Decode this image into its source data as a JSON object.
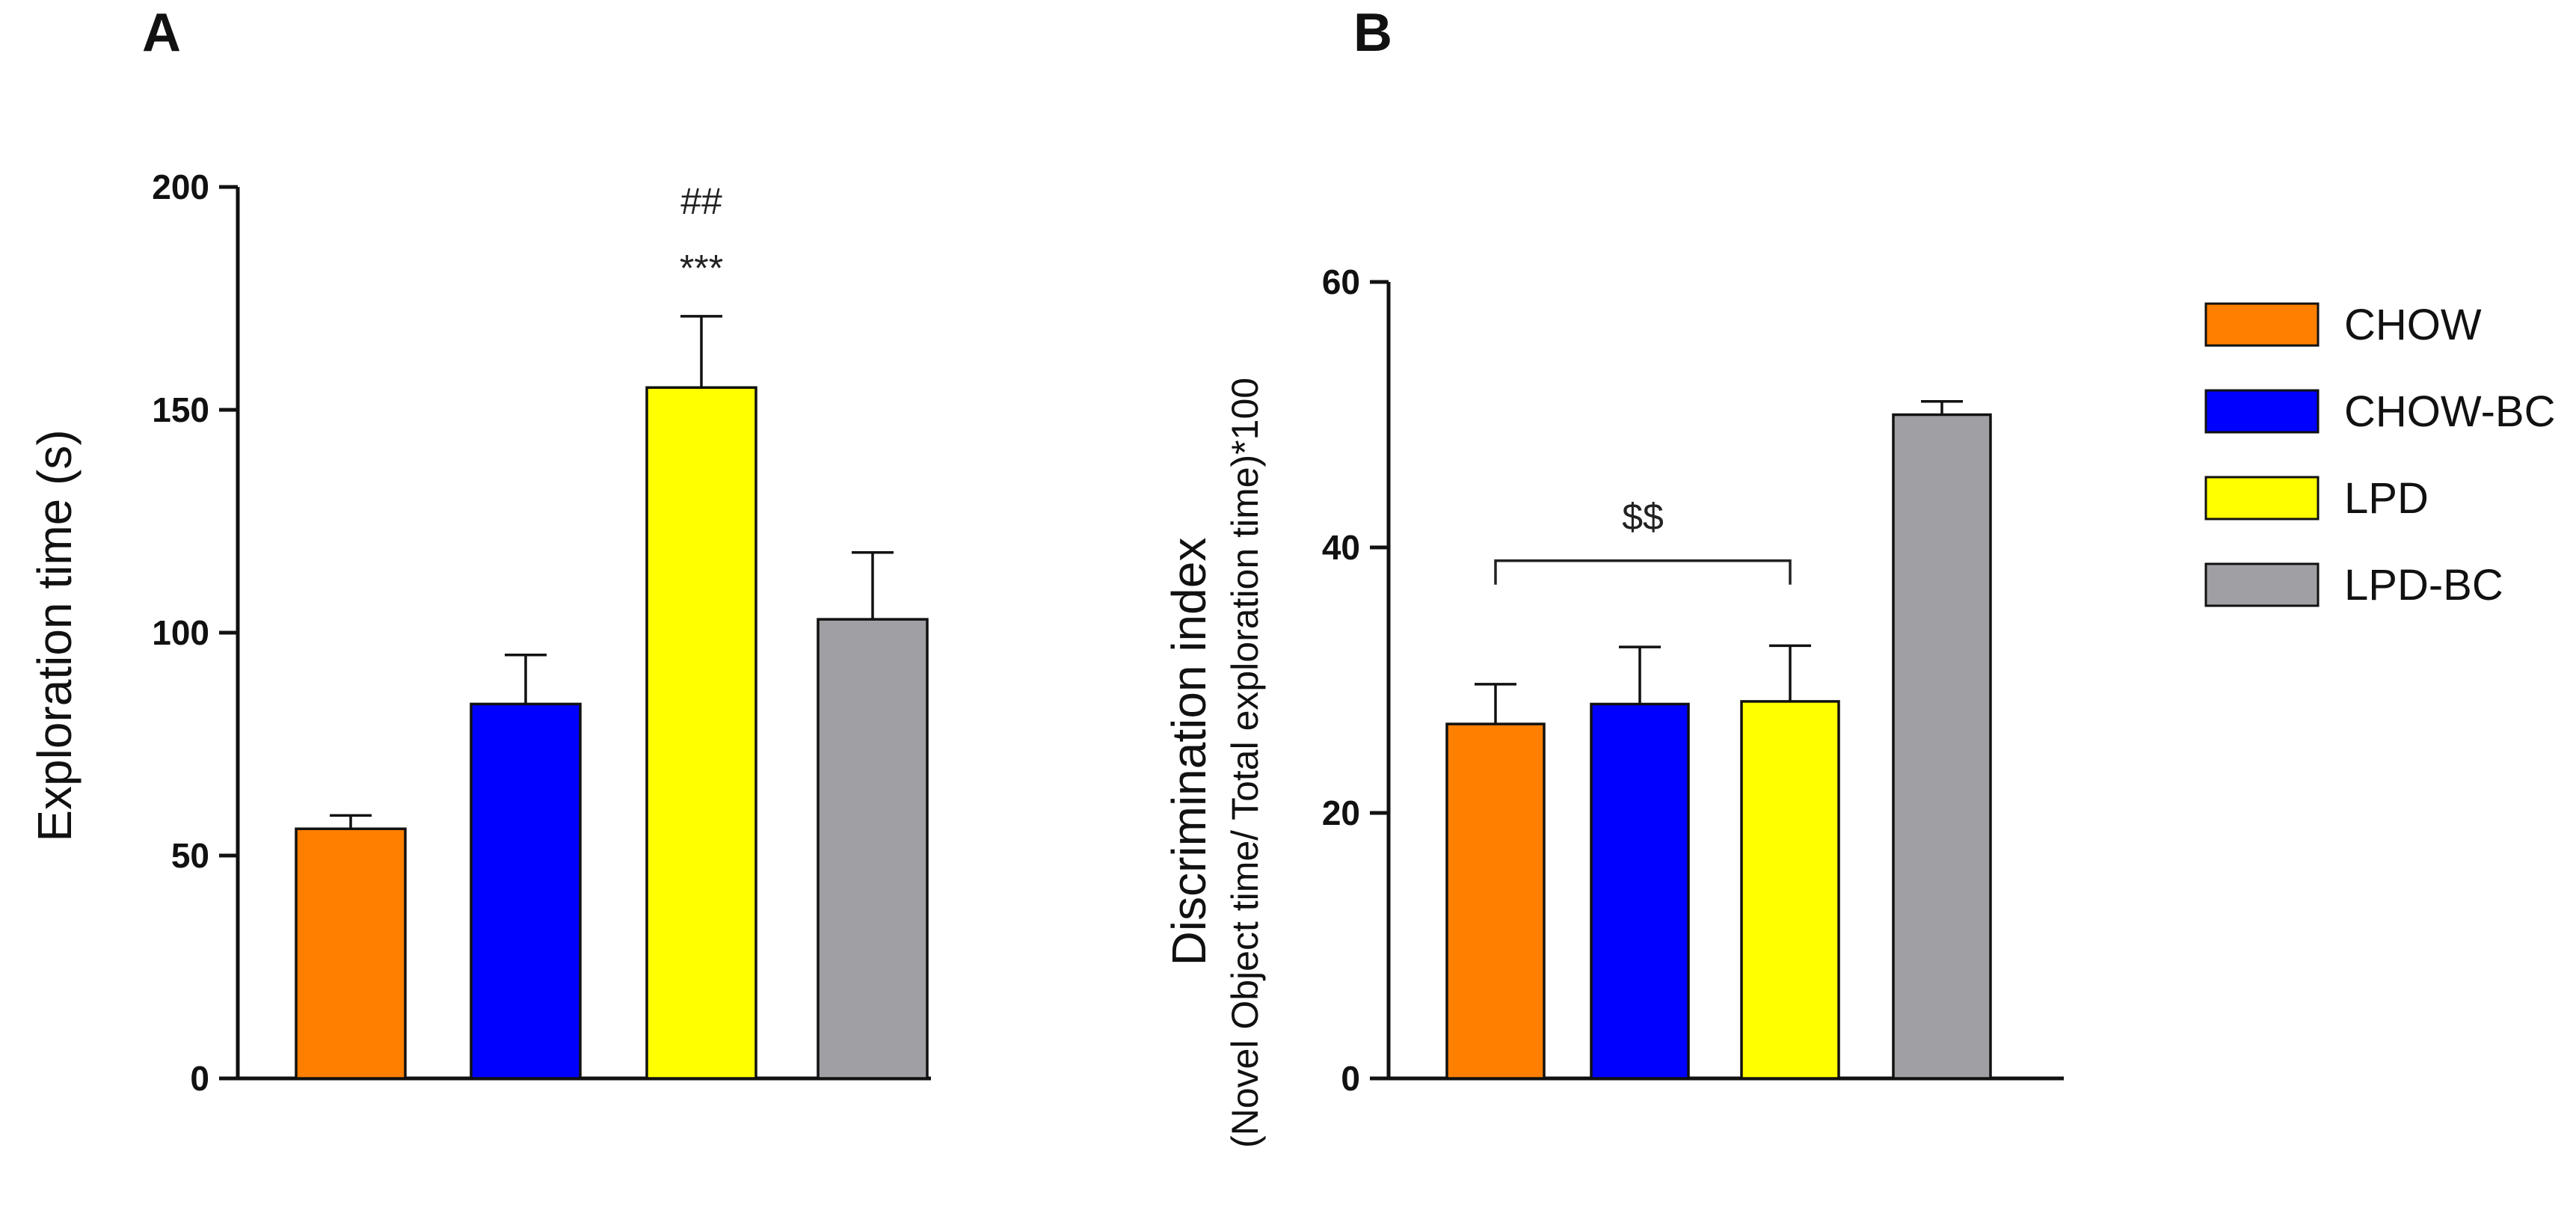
{
  "chart_data": [
    {
      "panel": "A",
      "type": "bar",
      "categories": [
        "CHOW",
        "CHOW-BC",
        "LPD",
        "LPD-BC"
      ],
      "values": [
        56,
        84,
        155,
        103
      ],
      "errors": [
        3,
        11,
        16,
        15
      ],
      "colors": [
        "#ff7f00",
        "#0000ff",
        "#ffff00",
        "#a0a0a4"
      ],
      "xlabel": "",
      "ylabel": "Exploration time (s)",
      "ylim": [
        0,
        200
      ],
      "ticks": [
        0,
        50,
        100,
        150,
        200
      ],
      "annotations": [
        {
          "text": "##",
          "category": "LPD",
          "y": 197
        },
        {
          "text": "***",
          "category": "LPD",
          "y": 182
        }
      ]
    },
    {
      "panel": "B",
      "type": "bar",
      "categories": [
        "CHOW",
        "CHOW-BC",
        "LPD",
        "LPD-BC"
      ],
      "values": [
        26.7,
        28.2,
        28.4,
        50
      ],
      "errors": [
        3,
        4.3,
        4.2,
        1
      ],
      "colors": [
        "#ff7f00",
        "#0000ff",
        "#ffff00",
        "#a0a0a4"
      ],
      "xlabel": "",
      "ylabel": "Discrimination index",
      "ylabel_sub": "(Novel Object time/ Total exploration time)*100",
      "ylim": [
        0,
        60
      ],
      "ticks": [
        0,
        20,
        40,
        60
      ],
      "bracket": {
        "text": "$$",
        "from": "CHOW",
        "to": "LPD",
        "y": 39
      }
    }
  ],
  "legend": {
    "items": [
      {
        "label": "CHOW",
        "color": "#ff7f00"
      },
      {
        "label": "CHOW-BC",
        "color": "#0000ff"
      },
      {
        "label": "LPD",
        "color": "#ffff00"
      },
      {
        "label": "LPD-BC",
        "color": "#a0a0a4"
      }
    ]
  }
}
